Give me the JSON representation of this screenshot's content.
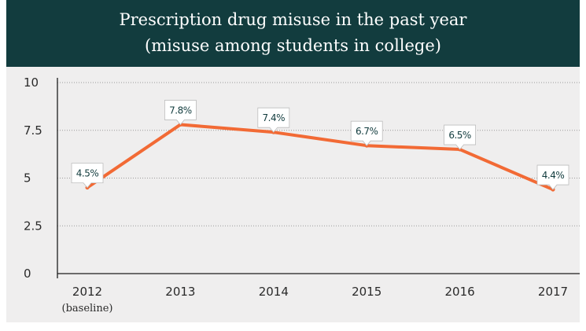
{
  "header": {
    "title_line1": "Prescription drug misuse in the past year",
    "title_line2": "(misuse among students in college)"
  },
  "colors": {
    "header_bg": "#123c3e",
    "plot_bg": "#efeeee",
    "line": "#f26a35",
    "label_text": "#123c3e"
  },
  "chart_data": {
    "type": "line",
    "title": "Prescription drug misuse in the past year (misuse among students in college)",
    "categories": [
      "2012",
      "2013",
      "2014",
      "2015",
      "2016",
      "2017"
    ],
    "x_sublabels": [
      "(baseline)",
      "",
      "",
      "",
      "",
      ""
    ],
    "series": [
      {
        "values": [
          4.5,
          7.8,
          7.4,
          6.7,
          6.5,
          4.4
        ],
        "labels": [
          "4.5%",
          "7.8%",
          "7.4%",
          "6.7%",
          "6.5%",
          "4.4%"
        ]
      }
    ],
    "y_ticks": [
      "0",
      "2.5",
      "5",
      "7.5",
      "10"
    ],
    "y_tick_values": [
      0,
      2.5,
      5,
      7.5,
      10
    ],
    "ylim": [
      0,
      10
    ],
    "grid": "horizontal dotted",
    "xlabel": "",
    "ylabel": ""
  }
}
